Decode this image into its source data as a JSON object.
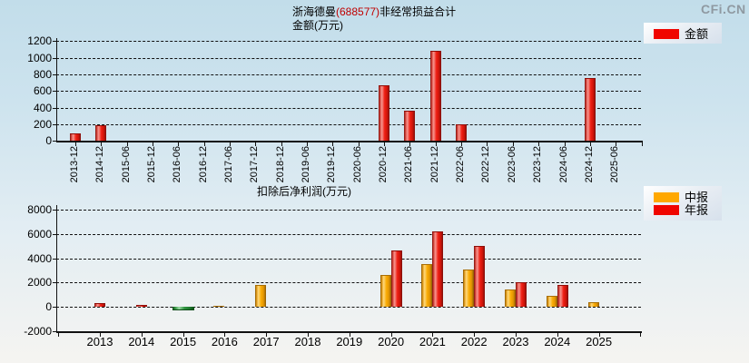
{
  "watermark": "CFi.CN",
  "chart_data": [
    {
      "type": "bar",
      "title": "浙海德曼(688577)非经常损益合计",
      "title_parts": {
        "prefix": "浙海德曼",
        "code": "(688577)",
        "suffix": "非经常损益合计"
      },
      "subtitle": "金额(万元)",
      "legend": [
        "金额"
      ],
      "legend_position": "top-right",
      "grid": "horizontal-dashed",
      "xtick_rotation": -90,
      "bar_color_hex": "#ee1c11",
      "categories": [
        "2013-12",
        "2014-12",
        "2015-06",
        "2015-12",
        "2016-06",
        "2016-12",
        "2017-06",
        "2017-12",
        "2018-12",
        "2019-06",
        "2019-12",
        "2020-06",
        "2020-12",
        "2021-06",
        "2021-12",
        "2022-06",
        "2022-12",
        "2023-06",
        "2023-12",
        "2024-06",
        "2024-12",
        "2025-06"
      ],
      "values": [
        85,
        185,
        null,
        null,
        null,
        null,
        null,
        null,
        null,
        null,
        null,
        null,
        665,
        360,
        1080,
        195,
        null,
        null,
        null,
        null,
        755,
        null
      ],
      "ylim": [
        0,
        1200
      ],
      "ytick_step": 200
    },
    {
      "type": "grouped-bar",
      "title": "扣除后净利润(万元)",
      "legend_position": "top-right",
      "grid": "horizontal-dashed",
      "negative_bar_color": "green",
      "categories": [
        "2013",
        "2014",
        "2015",
        "2016",
        "2017",
        "2018",
        "2019",
        "2020",
        "2021",
        "2022",
        "2023",
        "2024",
        "2025"
      ],
      "series": [
        {
          "name": "中报",
          "color_hex": "#ffa800",
          "values": [
            null,
            null,
            null,
            100,
            1800,
            null,
            null,
            2600,
            3500,
            3100,
            1400,
            900,
            400
          ]
        },
        {
          "name": "年报",
          "color_hex": "#f00500",
          "values": [
            350,
            200,
            -320,
            null,
            null,
            null,
            null,
            4650,
            6200,
            5000,
            2000,
            1800,
            null
          ]
        }
      ],
      "ylim": [
        -2000,
        8000
      ],
      "ytick_step": 2000
    }
  ]
}
